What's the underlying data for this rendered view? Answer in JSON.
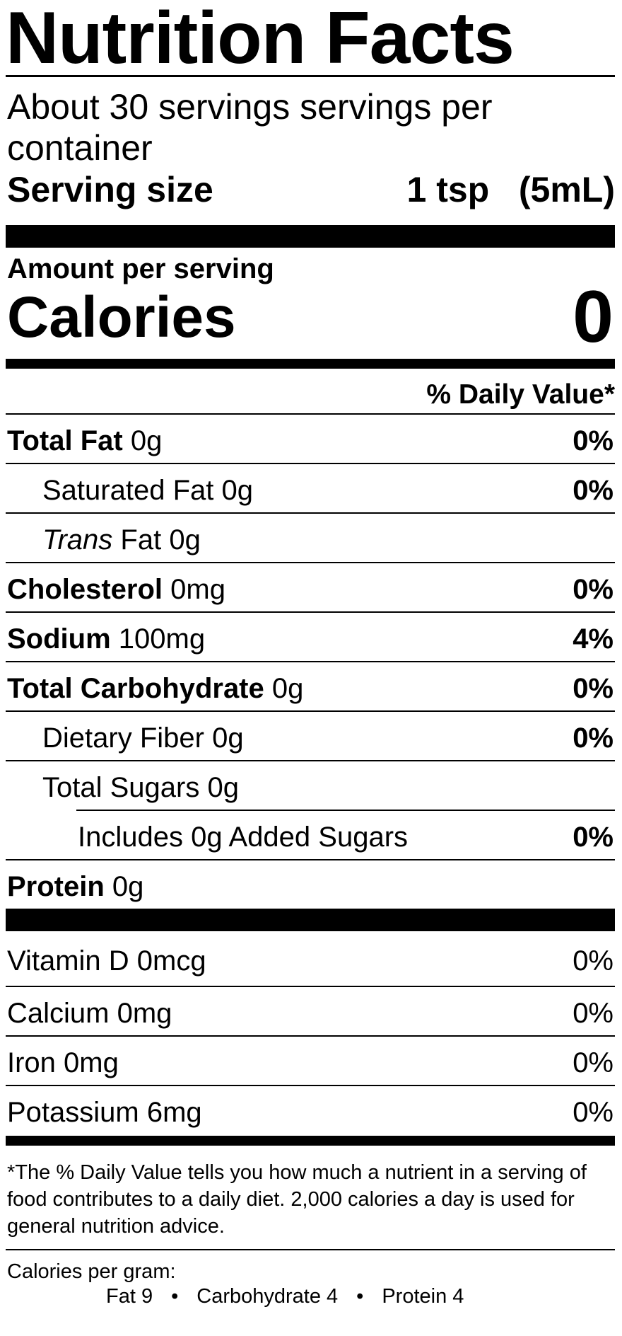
{
  "title": "Nutrition Facts",
  "servings_per_container": "About 30 servings  servings per container",
  "serving_size": {
    "label": "Serving size",
    "value": "1 tsp   (5mL)"
  },
  "amount_per_serving": "Amount per serving",
  "calories": {
    "label": "Calories",
    "value": "0"
  },
  "daily_value_header": "% Daily Value*",
  "nutrients": [
    {
      "name": "Total Fat",
      "amount": "0g",
      "dv": "0%"
    },
    {
      "name": "Saturated Fat",
      "amount": "0g",
      "dv": "0%"
    },
    {
      "name": "Trans",
      "suffix": "Fat",
      "amount": "0g",
      "dv": ""
    },
    {
      "name": "Cholesterol",
      "amount": "0mg",
      "dv": "0%"
    },
    {
      "name": "Sodium",
      "amount": "100mg",
      "dv": "4%"
    },
    {
      "name": "Total Carbohydrate",
      "amount": "0g",
      "dv": "0%"
    },
    {
      "name": "Dietary Fiber",
      "amount": "0g",
      "dv": "0%"
    },
    {
      "name": "Total Sugars",
      "amount": "0g",
      "dv": ""
    },
    {
      "name": "Includes 0g Added Sugars",
      "amount": "",
      "dv": "0%"
    },
    {
      "name": "Protein",
      "amount": "0g",
      "dv": ""
    }
  ],
  "vitamins": [
    {
      "name": "Vitamin D 0mcg",
      "dv": "0%"
    },
    {
      "name": "Calcium 0mg",
      "dv": "0%"
    },
    {
      "name": "Iron 0mg",
      "dv": "0%"
    },
    {
      "name": "Potassium 6mg",
      "dv": "0%"
    }
  ],
  "footnote": "*The % Daily Value tells you how much a nutrient in a serving of food contributes to a daily diet. 2,000 calories a day is used for general nutrition advice.",
  "calories_per_gram": {
    "heading": "Calories per gram:",
    "fat": "Fat 9",
    "carbohydrate": "Carbohydrate 4",
    "protein": "Protein 4",
    "separator": "•"
  }
}
